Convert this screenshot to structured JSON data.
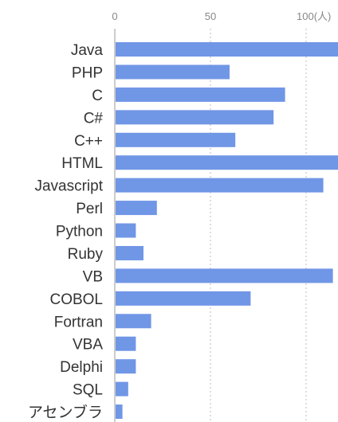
{
  "chart_data": {
    "type": "bar",
    "orientation": "horizontal",
    "categories": [
      "Java",
      "PHP",
      "C",
      "C#",
      "C++",
      "HTML",
      "Javascript",
      "Perl",
      "Python",
      "Ruby",
      "VB",
      "COBOL",
      "Fortran",
      "VBA",
      "Delphi",
      "SQL",
      "アセンブラ"
    ],
    "values": [
      117,
      60,
      89,
      83,
      63,
      117,
      109,
      22,
      11,
      15,
      114,
      71,
      19,
      11,
      11,
      7,
      4
    ],
    "title": "",
    "xlabel": "",
    "ylabel": "",
    "xlim": [
      0,
      117
    ],
    "ticks": [
      {
        "value": 0,
        "label": "0"
      },
      {
        "value": 50,
        "label": "50"
      },
      {
        "value": 100,
        "label": "100(人)"
      }
    ],
    "grid": true,
    "bar_color": "#7096e6",
    "grid_color": "#bbbbbb"
  }
}
